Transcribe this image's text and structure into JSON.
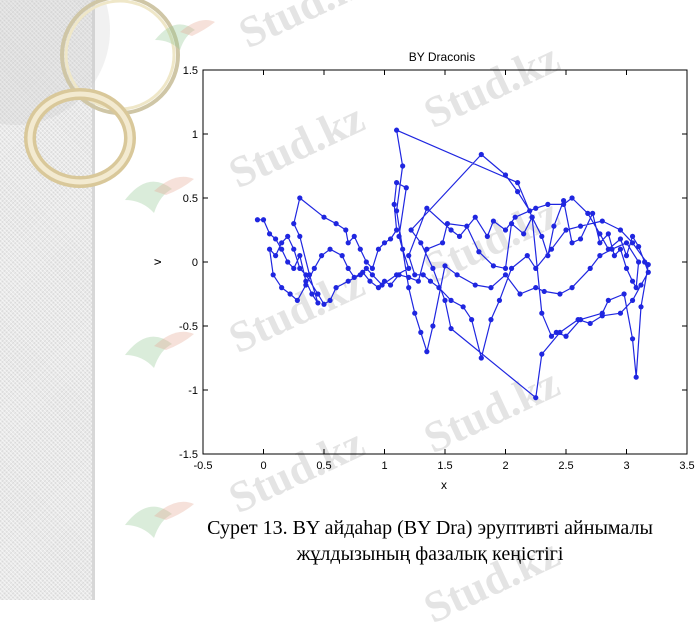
{
  "chart_data": {
    "type": "line",
    "title": "BY Draconis",
    "xlabel": "x",
    "ylabel": "v",
    "xlim": [
      -0.5,
      3.5
    ],
    "ylim": [
      -1.5,
      1.5
    ],
    "xticks": [
      "-0.5",
      "0",
      "0.5",
      "1",
      "1.5",
      "2",
      "2.5",
      "3",
      "3.5"
    ],
    "yticks": [
      "1.5",
      "1",
      "0.5",
      "0",
      "-0.5",
      "-1",
      "-1.5"
    ],
    "grid": false,
    "line_color": "#1f26e0",
    "marker": "filled-circle",
    "series": [
      {
        "points": [
          [
            -0.05,
            0.33
          ],
          [
            0.0,
            0.33
          ],
          [
            0.05,
            0.22
          ],
          [
            0.1,
            0.18
          ],
          [
            0.15,
            0.1
          ],
          [
            0.2,
            0.0
          ],
          [
            0.25,
            -0.05
          ],
          [
            0.3,
            0.05
          ],
          [
            0.35,
            -0.15
          ],
          [
            0.4,
            -0.25
          ],
          [
            0.45,
            -0.32
          ],
          [
            0.38,
            -0.1
          ],
          [
            0.3,
            0.2
          ],
          [
            0.25,
            0.3
          ],
          [
            0.3,
            0.5
          ],
          [
            0.5,
            0.35
          ],
          [
            0.6,
            0.3
          ],
          [
            0.68,
            0.25
          ],
          [
            0.7,
            0.15
          ],
          [
            0.75,
            0.2
          ],
          [
            0.8,
            0.1
          ],
          [
            0.85,
            0.0
          ],
          [
            0.9,
            -0.05
          ],
          [
            0.95,
            0.1
          ],
          [
            1.0,
            0.15
          ],
          [
            1.05,
            0.18
          ],
          [
            1.1,
            0.25
          ],
          [
            1.08,
            0.45
          ],
          [
            1.1,
            0.62
          ],
          [
            1.18,
            0.58
          ],
          [
            1.12,
            0.2
          ],
          [
            1.15,
            0.1
          ],
          [
            1.2,
            -0.05
          ],
          [
            1.1,
            -0.1
          ],
          [
            0.98,
            -0.18
          ],
          [
            0.9,
            -0.1
          ],
          [
            0.85,
            -0.05
          ],
          [
            0.8,
            -0.1
          ],
          [
            0.7,
            -0.15
          ],
          [
            0.6,
            -0.2
          ],
          [
            0.55,
            -0.3
          ],
          [
            0.5,
            -0.33
          ],
          [
            0.45,
            -0.25
          ],
          [
            0.35,
            -0.1
          ],
          [
            0.3,
            -0.05
          ],
          [
            0.25,
            0.1
          ],
          [
            0.2,
            0.2
          ],
          [
            0.15,
            0.15
          ],
          [
            0.1,
            0.05
          ],
          [
            0.05,
            0.1
          ],
          [
            0.08,
            -0.1
          ],
          [
            0.15,
            -0.2
          ],
          [
            0.22,
            -0.25
          ],
          [
            0.28,
            -0.3
          ],
          [
            0.35,
            -0.18
          ],
          [
            0.42,
            -0.05
          ],
          [
            0.48,
            0.05
          ],
          [
            0.55,
            0.1
          ],
          [
            0.65,
            0.05
          ],
          [
            0.7,
            -0.05
          ],
          [
            0.75,
            -0.12
          ],
          [
            0.82,
            -0.08
          ],
          [
            0.88,
            -0.15
          ],
          [
            0.95,
            -0.2
          ],
          [
            1.0,
            -0.15
          ],
          [
            1.05,
            -0.18
          ],
          [
            1.12,
            -0.1
          ],
          [
            1.2,
            -0.12
          ],
          [
            1.28,
            -0.15
          ],
          [
            1.35,
            0.1
          ],
          [
            1.48,
            0.15
          ],
          [
            1.52,
            0.3
          ],
          [
            1.68,
            0.28
          ],
          [
            1.78,
            0.08
          ],
          [
            1.9,
            -0.03
          ],
          [
            2.0,
            -0.05
          ],
          [
            2.05,
            0.3
          ],
          [
            2.15,
            0.22
          ],
          [
            2.22,
            0.35
          ],
          [
            2.3,
            0.2
          ],
          [
            2.35,
            0.05
          ],
          [
            2.4,
            0.28
          ],
          [
            2.48,
            0.48
          ],
          [
            2.55,
            0.15
          ],
          [
            2.62,
            0.18
          ],
          [
            2.72,
            0.38
          ],
          [
            2.78,
            0.15
          ],
          [
            2.85,
            0.22
          ],
          [
            2.9,
            0.05
          ],
          [
            2.95,
            0.1
          ],
          [
            3.0,
            -0.05
          ],
          [
            3.05,
            -0.15
          ],
          [
            3.08,
            -0.2
          ],
          [
            3.1,
            0.0
          ],
          [
            3.0,
            0.15
          ],
          [
            2.88,
            0.1
          ],
          [
            2.78,
            0.05
          ],
          [
            2.7,
            -0.05
          ],
          [
            2.55,
            -0.2
          ],
          [
            2.45,
            -0.25
          ],
          [
            2.32,
            -0.23
          ],
          [
            2.25,
            -0.2
          ],
          [
            2.12,
            -0.25
          ],
          [
            2.0,
            -0.1
          ],
          [
            1.88,
            -0.2
          ],
          [
            1.75,
            -0.18
          ],
          [
            1.6,
            -0.1
          ],
          [
            1.5,
            -0.03
          ],
          [
            1.4,
            -0.5
          ],
          [
            1.35,
            -0.7
          ],
          [
            1.3,
            -0.55
          ],
          [
            1.25,
            -0.4
          ],
          [
            1.2,
            -0.2
          ],
          [
            1.1,
            0.4
          ],
          [
            1.15,
            0.75
          ],
          [
            1.1,
            1.03
          ],
          [
            2.1,
            0.62
          ],
          [
            2.22,
            0.35
          ],
          [
            2.3,
            -0.4
          ],
          [
            2.38,
            -0.58
          ],
          [
            2.42,
            -0.55
          ],
          [
            2.5,
            -0.58
          ],
          [
            2.62,
            -0.45
          ],
          [
            2.8,
            -0.4
          ],
          [
            2.85,
            -0.3
          ],
          [
            2.98,
            -0.25
          ],
          [
            3.05,
            -0.6
          ],
          [
            3.08,
            -0.9
          ],
          [
            3.12,
            -0.35
          ],
          [
            3.18,
            -0.02
          ],
          [
            3.05,
            0.15
          ],
          [
            2.95,
            0.25
          ],
          [
            2.8,
            0.32
          ],
          [
            2.62,
            0.28
          ],
          [
            2.5,
            0.25
          ],
          [
            2.38,
            0.1
          ],
          [
            2.25,
            -0.05
          ],
          [
            2.18,
            0.05
          ],
          [
            2.05,
            -0.05
          ],
          [
            1.95,
            -0.3
          ],
          [
            1.88,
            -0.45
          ],
          [
            1.8,
            -0.75
          ],
          [
            1.72,
            -0.45
          ],
          [
            1.65,
            -0.35
          ],
          [
            1.55,
            -0.3
          ],
          [
            1.45,
            -0.2
          ],
          [
            1.38,
            -0.15
          ],
          [
            1.32,
            -0.1
          ],
          [
            1.25,
            -0.1
          ],
          [
            1.2,
            0.05
          ],
          [
            1.35,
            0.42
          ],
          [
            1.55,
            0.25
          ],
          [
            1.62,
            0.2
          ],
          [
            1.75,
            0.35
          ],
          [
            1.85,
            0.2
          ],
          [
            1.9,
            0.32
          ],
          [
            2.0,
            0.25
          ],
          [
            2.08,
            0.35
          ],
          [
            2.25,
            0.42
          ],
          [
            2.35,
            0.45
          ],
          [
            2.48,
            0.45
          ],
          [
            2.55,
            0.5
          ],
          [
            2.68,
            0.38
          ],
          [
            2.78,
            0.22
          ],
          [
            2.85,
            0.1
          ],
          [
            2.95,
            0.18
          ],
          [
            3.0,
            0.05
          ],
          [
            3.05,
            0.2
          ],
          [
            3.1,
            0.12
          ],
          [
            3.15,
            0.0
          ],
          [
            3.18,
            -0.08
          ],
          [
            3.12,
            -0.18
          ],
          [
            3.05,
            -0.3
          ],
          [
            2.95,
            -0.4
          ],
          [
            2.8,
            -0.42
          ],
          [
            2.7,
            -0.48
          ],
          [
            2.6,
            -0.45
          ],
          [
            2.45,
            -0.55
          ],
          [
            2.3,
            -0.72
          ],
          [
            2.25,
            -1.06
          ],
          [
            1.55,
            -0.52
          ],
          [
            1.5,
            -0.3
          ],
          [
            1.4,
            -0.05
          ],
          [
            1.3,
            0.15
          ],
          [
            1.22,
            0.25
          ],
          [
            1.8,
            0.84
          ],
          [
            2.0,
            0.68
          ],
          [
            2.1,
            0.55
          ],
          [
            2.2,
            0.4
          ]
        ]
      }
    ],
    "caption_line1": "Сурет 13. BY айдаһар (BY Dra) эруптивті айнымалы",
    "caption_line2": "жұлдызының фазалық кеңістігі"
  },
  "watermark_text": "Stud.kz"
}
